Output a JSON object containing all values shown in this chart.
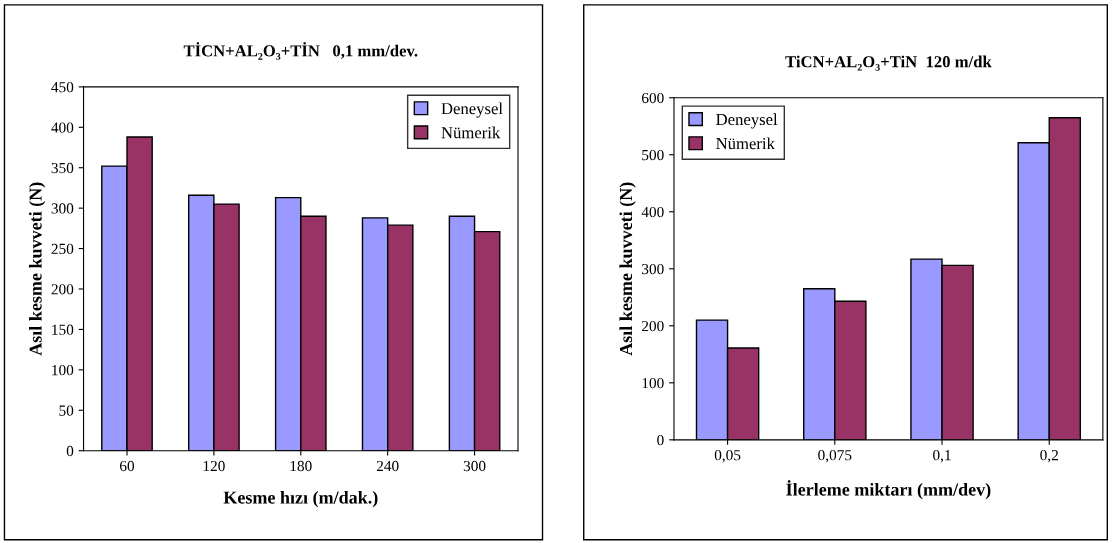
{
  "chart_data": [
    {
      "type": "bar",
      "title": "TİCN+AL₂O₃+TİN   0,1 mm/dev.",
      "xlabel": "Kesme hızı (m/dak.)",
      "ylabel": "Asıl kesme kuvveti (N)",
      "categories": [
        "60",
        "120",
        "180",
        "240",
        "300"
      ],
      "series": [
        {
          "name": "Deneysel",
          "color": "#9999ff",
          "values": [
            352,
            316,
            313,
            288,
            290
          ]
        },
        {
          "name": "Nümerik",
          "color": "#993366",
          "values": [
            388,
            305,
            290,
            279,
            271
          ]
        }
      ],
      "ylim": [
        0,
        450
      ],
      "yticks": [
        0,
        50,
        100,
        150,
        200,
        250,
        300,
        350,
        400,
        450
      ],
      "grid": false,
      "legend": "top right"
    },
    {
      "type": "bar",
      "title": "TiCN+AL₂O₃+TiN  120 m/dk",
      "xlabel": "İlerleme miktarı (mm/dev)",
      "ylabel": "Asıl kesme kuvveti (N)",
      "categories": [
        "0,05",
        "0,075",
        "0,1",
        "0,2"
      ],
      "series": [
        {
          "name": "Deneysel",
          "color": "#9999ff",
          "values": [
            210,
            265,
            317,
            521
          ]
        },
        {
          "name": "Nümerik",
          "color": "#993366",
          "values": [
            161,
            243,
            306,
            565
          ]
        }
      ],
      "ylim": [
        0,
        600
      ],
      "yticks": [
        0,
        100,
        200,
        300,
        400,
        500,
        600
      ],
      "grid": false,
      "legend": "top left"
    }
  ]
}
